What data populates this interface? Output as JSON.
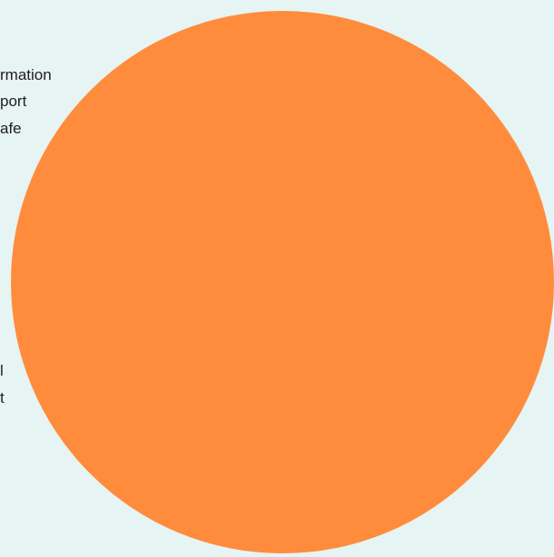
{
  "background_color": "#e6f4f3",
  "disc_color": "#ff8c3c",
  "fragments": [
    "rmation",
    "port",
    "afe",
    "l",
    "t"
  ]
}
